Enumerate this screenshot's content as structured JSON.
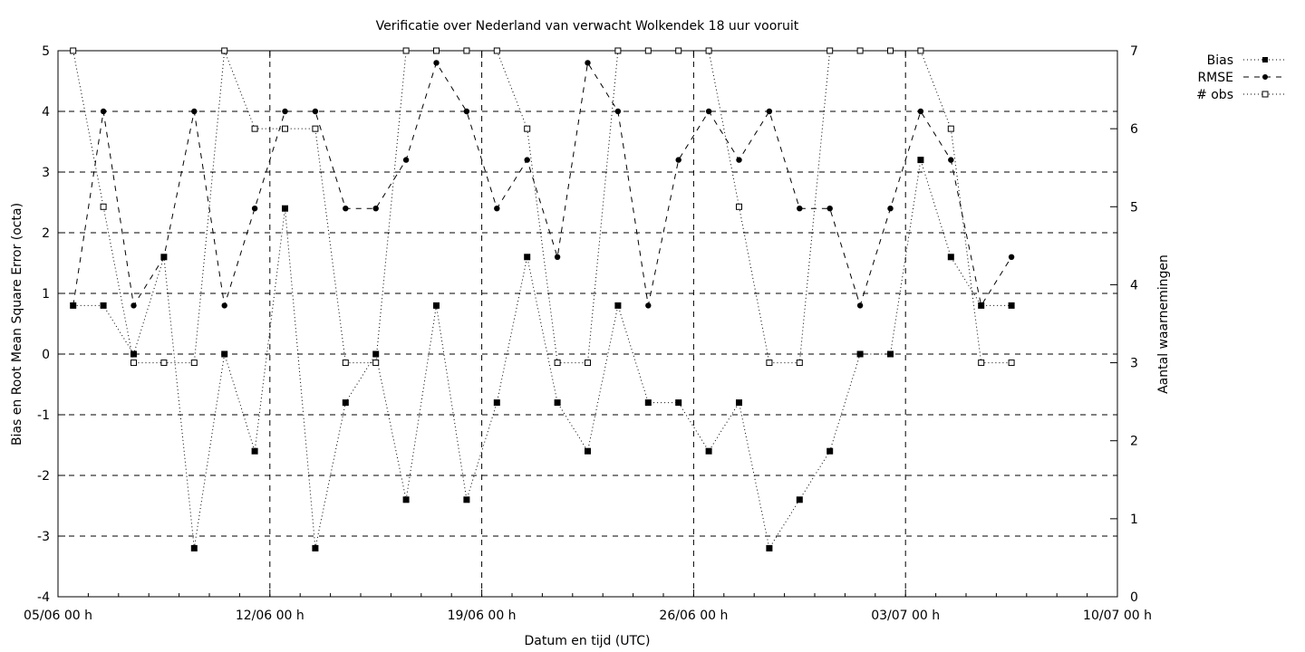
{
  "chart_data": {
    "type": "line",
    "title": "Verificatie over Nederland van verwacht Wolkendek 18 uur vooruit",
    "xlabel": "Datum en tijd (UTC)",
    "ylabel": "Bias en Root Mean Square Error (octa)",
    "y2label": "Aantal waarnemingen",
    "xlim": [
      0,
      35
    ],
    "ylim": [
      -4,
      5
    ],
    "y2lim": [
      0,
      7
    ],
    "xticks": [
      {
        "x": 0,
        "label": "05/06 00 h"
      },
      {
        "x": 7,
        "label": "12/06 00 h"
      },
      {
        "x": 14,
        "label": "19/06 00 h"
      },
      {
        "x": 21,
        "label": "26/06 00 h"
      },
      {
        "x": 28,
        "label": "03/07 00 h"
      },
      {
        "x": 35,
        "label": "10/07 00 h"
      }
    ],
    "yticks": [
      "-4",
      "-3",
      "-2",
      "-1",
      "0",
      "1",
      "2",
      "3",
      "4",
      "5"
    ],
    "y2ticks": [
      "0",
      "1",
      "2",
      "3",
      "4",
      "5",
      "6",
      "7"
    ],
    "grid": true,
    "legend_position": "top-right",
    "x_unit": "days since 05/06 00 h",
    "series": [
      {
        "name": "Bias",
        "axis": "left",
        "color": "#000000",
        "x": [
          0.5,
          1.5,
          2.5,
          3.5,
          4.5,
          5.5,
          6.5,
          7.5,
          8.5,
          9.5,
          10.5,
          11.5,
          12.5,
          13.5,
          14.5,
          15.5,
          16.5,
          17.5,
          18.5,
          19.5,
          20.5,
          21.5,
          22.5,
          23.5,
          24.5,
          25.5,
          26.5,
          27.5,
          28.5,
          29.5,
          30.5,
          31.5
        ],
        "values": [
          0.8,
          0.8,
          0,
          1.6,
          -3.2,
          0,
          -1.6,
          2.4,
          -3.2,
          -0.8,
          0,
          -2.4,
          0.8,
          -2.4,
          -0.8,
          1.6,
          -0.8,
          -1.6,
          0.8,
          -0.8,
          -0.8,
          -1.6,
          -0.8,
          -3.2,
          -2.4,
          -1.6,
          0,
          0,
          3.2,
          1.6,
          0.8,
          0.8
        ]
      },
      {
        "name": "RMSE",
        "axis": "left",
        "color": "#000000",
        "x": [
          0.5,
          1.5,
          2.5,
          3.5,
          4.5,
          5.5,
          6.5,
          7.5,
          8.5,
          9.5,
          10.5,
          11.5,
          12.5,
          13.5,
          14.5,
          15.5,
          16.5,
          17.5,
          18.5,
          19.5,
          20.5,
          21.5,
          22.5,
          23.5,
          24.5,
          25.5,
          26.5,
          27.5,
          28.5,
          29.5,
          30.5,
          31.5
        ],
        "values": [
          0.8,
          4,
          0.8,
          1.6,
          4,
          0.8,
          2.4,
          4,
          4,
          2.4,
          2.4,
          3.2,
          4.8,
          4,
          2.4,
          3.2,
          1.6,
          4.8,
          4,
          0.8,
          3.2,
          4,
          3.2,
          4,
          2.4,
          2.4,
          0.8,
          2.4,
          4,
          3.2,
          0.8,
          1.6
        ]
      },
      {
        "name": "# obs",
        "axis": "right",
        "color": "#000000",
        "x": [
          0.5,
          1.5,
          2.5,
          3.5,
          4.5,
          5.5,
          6.5,
          7.5,
          8.5,
          9.5,
          10.5,
          11.5,
          12.5,
          13.5,
          14.5,
          15.5,
          16.5,
          17.5,
          18.5,
          19.5,
          20.5,
          21.5,
          22.5,
          23.5,
          24.5,
          25.5,
          26.5,
          27.5,
          28.5,
          29.5,
          30.5,
          31.5
        ],
        "values": [
          7,
          5,
          3,
          3,
          3,
          7,
          6,
          6,
          6,
          3,
          3,
          7,
          7,
          7,
          7,
          6,
          3,
          3,
          7,
          7,
          7,
          7,
          5,
          3,
          3,
          7,
          7,
          7,
          7,
          6,
          3,
          3
        ]
      }
    ]
  }
}
